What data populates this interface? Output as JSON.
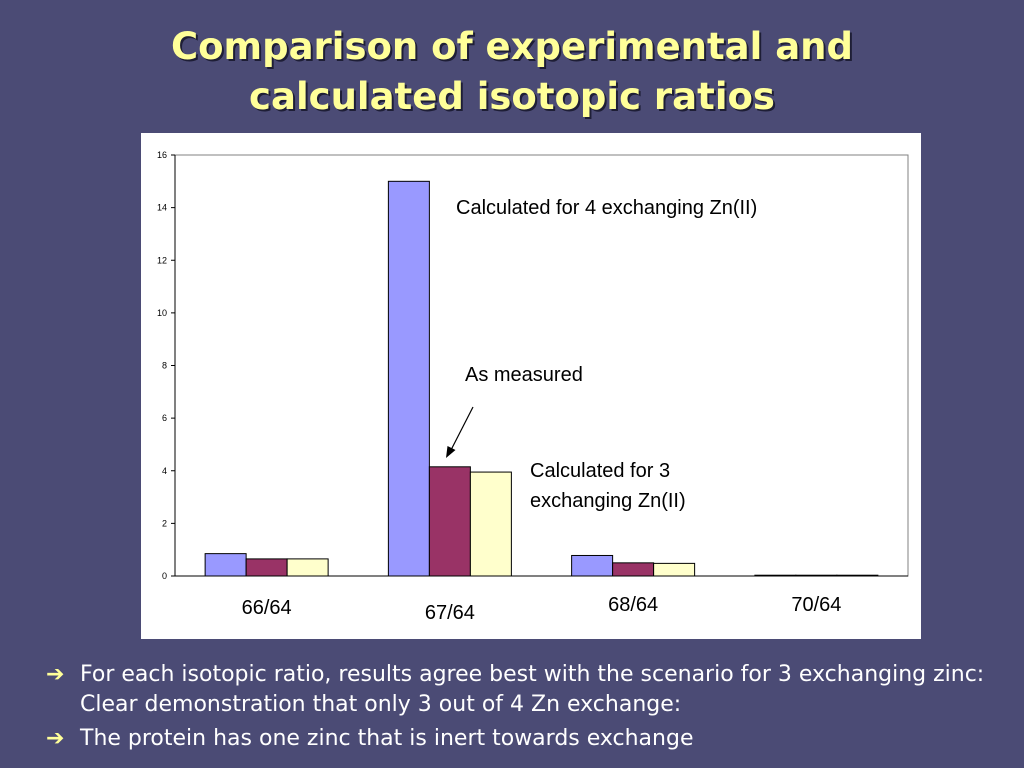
{
  "slide": {
    "title_lines": [
      "Comparison of experimental and",
      "calculated isotopic ratios"
    ],
    "bullets": [
      "For each isotopic ratio, results agree best with the scenario for 3 exchanging zinc: Clear demonstration that only 3 out of 4 Zn exchange:",
      "The protein has one zinc that is inert towards exchange"
    ],
    "bullet_glyph": "➔"
  },
  "colors": {
    "background": "#4b4b75",
    "title": "#ffff99",
    "series": [
      "#9999ff",
      "#993366",
      "#ffffcc"
    ]
  },
  "chart_data": {
    "type": "bar",
    "categories": [
      "66/64",
      "67/64",
      "68/64",
      "70/64"
    ],
    "series": [
      {
        "values": [
          0.85,
          15.0,
          0.78,
          0.03
        ]
      },
      {
        "values": [
          0.65,
          4.15,
          0.5,
          0.03
        ]
      },
      {
        "values": [
          0.65,
          3.95,
          0.48,
          0.03
        ]
      }
    ],
    "ylim": [
      0,
      16
    ],
    "yticks": [
      0,
      2,
      4,
      6,
      8,
      10,
      12,
      14,
      16
    ],
    "grid": false,
    "annotations": [
      {
        "text": "Calculated for 4 exchanging Zn(II)",
        "series": 0,
        "category": 1
      },
      {
        "text": "As measured",
        "series": 1,
        "category": 1,
        "arrow": true
      },
      {
        "text": "Calculated for 3 exchanging Zn(II)",
        "series": 2,
        "category": 1
      }
    ]
  }
}
